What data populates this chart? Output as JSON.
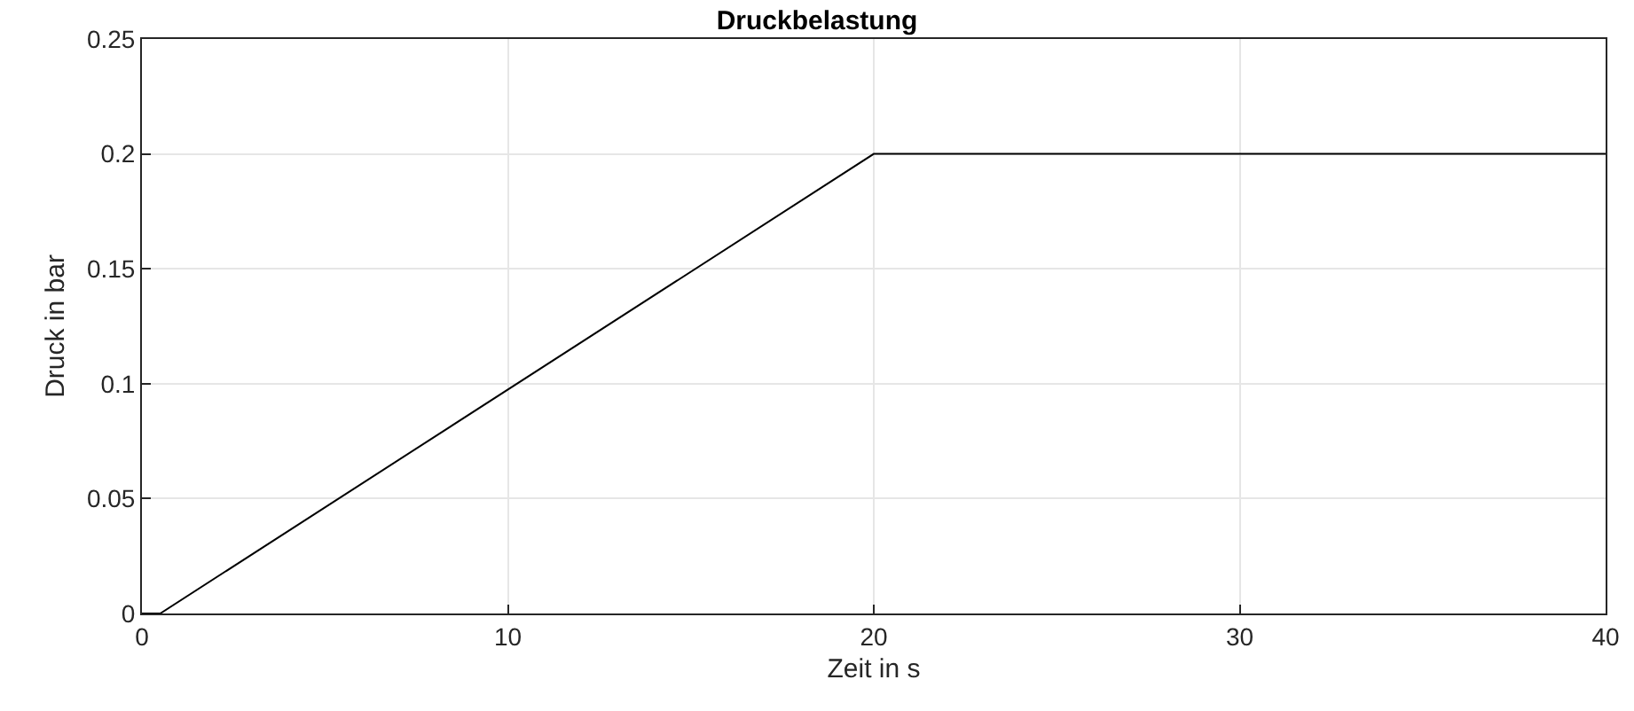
{
  "chart_data": {
    "type": "line",
    "title": "Druckbelastung",
    "xlabel": "Zeit in s",
    "ylabel": "Druck in bar",
    "x": [
      0,
      0.5,
      20,
      40
    ],
    "series": [
      {
        "color": "#000000",
        "values": [
          0,
          0,
          0.2,
          0.2
        ]
      }
    ],
    "xlim": [
      0,
      40
    ],
    "xticks": [
      0,
      10,
      20,
      30,
      40
    ],
    "ylim": [
      0,
      0.25
    ],
    "yticks": [
      0,
      0.05,
      0.1,
      0.15,
      0.2,
      0.25
    ],
    "grid": true,
    "marker": "none",
    "line_style": "solid"
  }
}
